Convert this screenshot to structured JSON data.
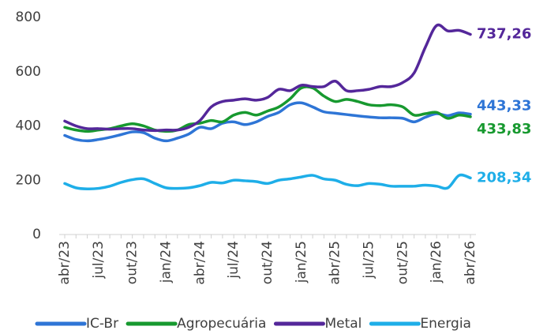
{
  "chart_data": {
    "type": "line",
    "categories": [
      "abr/23",
      null,
      null,
      "jul/23",
      null,
      null,
      "out/23",
      null,
      null,
      "jan/24",
      null,
      null,
      "abr/24",
      null,
      null,
      "jul/24",
      null,
      null,
      "out/24",
      null,
      null,
      "jan/25",
      null,
      null,
      "abr/25",
      null,
      null,
      "jul/25",
      null,
      null,
      "out/25",
      null,
      null,
      "jan/26",
      null,
      null,
      "abr/26"
    ],
    "ylim": [
      0,
      800
    ],
    "yticks": [
      0,
      200,
      400,
      600,
      800
    ],
    "grid": false,
    "legend": "bottom",
    "series": [
      {
        "name": "IC-Br",
        "color": "#2e75d6",
        "values": [
          365,
          350,
          345,
          350,
          358,
          368,
          378,
          375,
          355,
          345,
          355,
          370,
          395,
          390,
          410,
          415,
          405,
          415,
          435,
          450,
          478,
          485,
          470,
          452,
          447,
          442,
          437,
          433,
          430,
          430,
          428,
          415,
          432,
          445,
          438,
          448,
          443.33
        ],
        "value_labels": [
          null,
          null,
          null,
          null,
          null,
          null,
          null,
          null,
          null,
          null,
          null,
          null,
          null,
          null,
          null,
          null,
          null,
          null,
          null,
          null,
          null,
          null,
          null,
          null,
          null,
          null,
          null,
          null,
          null,
          null,
          null,
          null,
          null,
          null,
          null,
          null,
          "443,33"
        ]
      },
      {
        "name": "Agropecuária",
        "color": "#17992f",
        "values": [
          395,
          385,
          380,
          385,
          390,
          400,
          408,
          400,
          385,
          380,
          385,
          405,
          410,
          420,
          415,
          440,
          450,
          440,
          455,
          470,
          500,
          540,
          540,
          510,
          490,
          498,
          490,
          478,
          475,
          478,
          470,
          440,
          445,
          450,
          428,
          440,
          433.83
        ],
        "value_labels": [
          null,
          null,
          null,
          null,
          null,
          null,
          null,
          null,
          null,
          null,
          null,
          null,
          null,
          null,
          null,
          null,
          null,
          null,
          null,
          null,
          null,
          null,
          null,
          null,
          null,
          null,
          null,
          null,
          null,
          null,
          null,
          null,
          null,
          null,
          null,
          null,
          "433,83"
        ]
      },
      {
        "name": "Metal",
        "color": "#54279a",
        "values": [
          418,
          400,
          390,
          390,
          388,
          390,
          390,
          385,
          383,
          385,
          385,
          395,
          420,
          470,
          490,
          495,
          500,
          495,
          505,
          535,
          530,
          550,
          545,
          545,
          565,
          530,
          530,
          535,
          545,
          545,
          560,
          595,
          690,
          770,
          750,
          752,
          737.26
        ],
        "value_labels": [
          null,
          null,
          null,
          null,
          null,
          null,
          null,
          null,
          null,
          null,
          null,
          null,
          null,
          null,
          null,
          null,
          null,
          null,
          null,
          null,
          null,
          null,
          null,
          null,
          null,
          null,
          null,
          null,
          null,
          null,
          null,
          null,
          null,
          null,
          null,
          null,
          "737,26"
        ]
      },
      {
        "name": "Energia",
        "color": "#1eaee8",
        "values": [
          188,
          172,
          168,
          170,
          178,
          192,
          202,
          205,
          188,
          172,
          170,
          172,
          180,
          192,
          190,
          200,
          198,
          195,
          188,
          200,
          205,
          212,
          218,
          205,
          200,
          185,
          180,
          188,
          185,
          178,
          178,
          178,
          182,
          178,
          172,
          218,
          208.34
        ],
        "value_labels": [
          null,
          null,
          null,
          null,
          null,
          null,
          null,
          null,
          null,
          null,
          null,
          null,
          null,
          null,
          null,
          null,
          null,
          null,
          null,
          null,
          null,
          null,
          null,
          null,
          null,
          null,
          null,
          null,
          null,
          null,
          null,
          null,
          null,
          null,
          null,
          null,
          "208,34"
        ]
      }
    ]
  }
}
